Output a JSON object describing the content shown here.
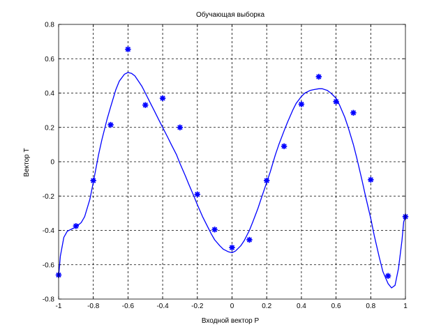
{
  "chart_data": {
    "type": "scatter",
    "title": "Обучающая выборка",
    "xlabel": "Входной вектор P",
    "ylabel": "Вектор T",
    "xlim": [
      -1,
      1
    ],
    "ylim": [
      -0.8,
      0.8
    ],
    "x_ticks": [
      {
        "value": -1,
        "label": "-1"
      },
      {
        "value": -0.8,
        "label": "-0.8"
      },
      {
        "value": -0.6,
        "label": "-0.6"
      },
      {
        "value": -0.4,
        "label": "-0.4"
      },
      {
        "value": -0.2,
        "label": "-0.2"
      },
      {
        "value": 0,
        "label": "0"
      },
      {
        "value": 0.2,
        "label": "0.2"
      },
      {
        "value": 0.4,
        "label": "0.4"
      },
      {
        "value": 0.6,
        "label": "0.6"
      },
      {
        "value": 0.8,
        "label": "0.8"
      },
      {
        "value": 1,
        "label": "1"
      }
    ],
    "y_ticks": [
      {
        "value": -0.8,
        "label": "-0.8"
      },
      {
        "value": -0.6,
        "label": "-0.6"
      },
      {
        "value": -0.4,
        "label": "-0.4"
      },
      {
        "value": -0.2,
        "label": "-0.2"
      },
      {
        "value": 0,
        "label": "0"
      },
      {
        "value": 0.2,
        "label": "0.2"
      },
      {
        "value": 0.4,
        "label": "0.4"
      },
      {
        "value": 0.6,
        "label": "0.6"
      },
      {
        "value": 0.8,
        "label": "0.8"
      }
    ],
    "grid": true,
    "series": [
      {
        "kind": "markers",
        "marker": "asterisk",
        "color": "#0000ff",
        "x": [
          -1,
          -0.9,
          -0.8,
          -0.7,
          -0.6,
          -0.5,
          -0.4,
          -0.3,
          -0.2,
          -0.1,
          0,
          0.1,
          0.2,
          0.3,
          0.4,
          0.5,
          0.6,
          0.7,
          0.8,
          0.9,
          1
        ],
        "y": [
          -0.66,
          -0.375,
          -0.11,
          0.215,
          0.655,
          0.33,
          0.37,
          0.2,
          -0.19,
          -0.395,
          -0.5,
          -0.455,
          -0.11,
          0.09,
          0.335,
          0.495,
          0.35,
          0.285,
          -0.105,
          -0.665,
          -0.32
        ]
      },
      {
        "kind": "line",
        "color": "#0000ff",
        "x": [
          -1,
          -0.99,
          -0.97,
          -0.95,
          -0.92,
          -0.9,
          -0.87,
          -0.85,
          -0.82,
          -0.8,
          -0.77,
          -0.75,
          -0.72,
          -0.7,
          -0.67,
          -0.65,
          -0.62,
          -0.6,
          -0.58,
          -0.56,
          -0.54,
          -0.52,
          -0.5,
          -0.47,
          -0.45,
          -0.42,
          -0.4,
          -0.37,
          -0.35,
          -0.32,
          -0.3,
          -0.27,
          -0.25,
          -0.22,
          -0.2,
          -0.17,
          -0.15,
          -0.12,
          -0.1,
          -0.07,
          -0.05,
          -0.02,
          0,
          0.02,
          0.05,
          0.07,
          0.1,
          0.12,
          0.15,
          0.17,
          0.2,
          0.22,
          0.25,
          0.27,
          0.3,
          0.32,
          0.35,
          0.37,
          0.4,
          0.42,
          0.45,
          0.47,
          0.5,
          0.52,
          0.55,
          0.57,
          0.6,
          0.62,
          0.65,
          0.67,
          0.7,
          0.72,
          0.75,
          0.77,
          0.8,
          0.82,
          0.85,
          0.87,
          0.9,
          0.92,
          0.94,
          0.96,
          0.98,
          0.99,
          1
        ],
        "y": [
          -0.67,
          -0.55,
          -0.44,
          -0.405,
          -0.39,
          -0.38,
          -0.355,
          -0.32,
          -0.22,
          -0.12,
          0.04,
          0.13,
          0.25,
          0.32,
          0.42,
          0.47,
          0.51,
          0.52,
          0.515,
          0.5,
          0.47,
          0.44,
          0.4,
          0.34,
          0.3,
          0.24,
          0.2,
          0.14,
          0.1,
          0.04,
          -0.01,
          -0.08,
          -0.13,
          -0.2,
          -0.25,
          -0.32,
          -0.36,
          -0.42,
          -0.455,
          -0.49,
          -0.51,
          -0.525,
          -0.53,
          -0.52,
          -0.49,
          -0.46,
          -0.4,
          -0.35,
          -0.27,
          -0.21,
          -0.12,
          -0.06,
          0.04,
          0.1,
          0.18,
          0.23,
          0.3,
          0.34,
          0.38,
          0.4,
          0.415,
          0.42,
          0.425,
          0.425,
          0.415,
          0.4,
          0.37,
          0.33,
          0.26,
          0.2,
          0.1,
          0.02,
          -0.11,
          -0.2,
          -0.33,
          -0.43,
          -0.56,
          -0.64,
          -0.71,
          -0.735,
          -0.72,
          -0.62,
          -0.46,
          -0.35,
          -0.32
        ]
      }
    ]
  }
}
